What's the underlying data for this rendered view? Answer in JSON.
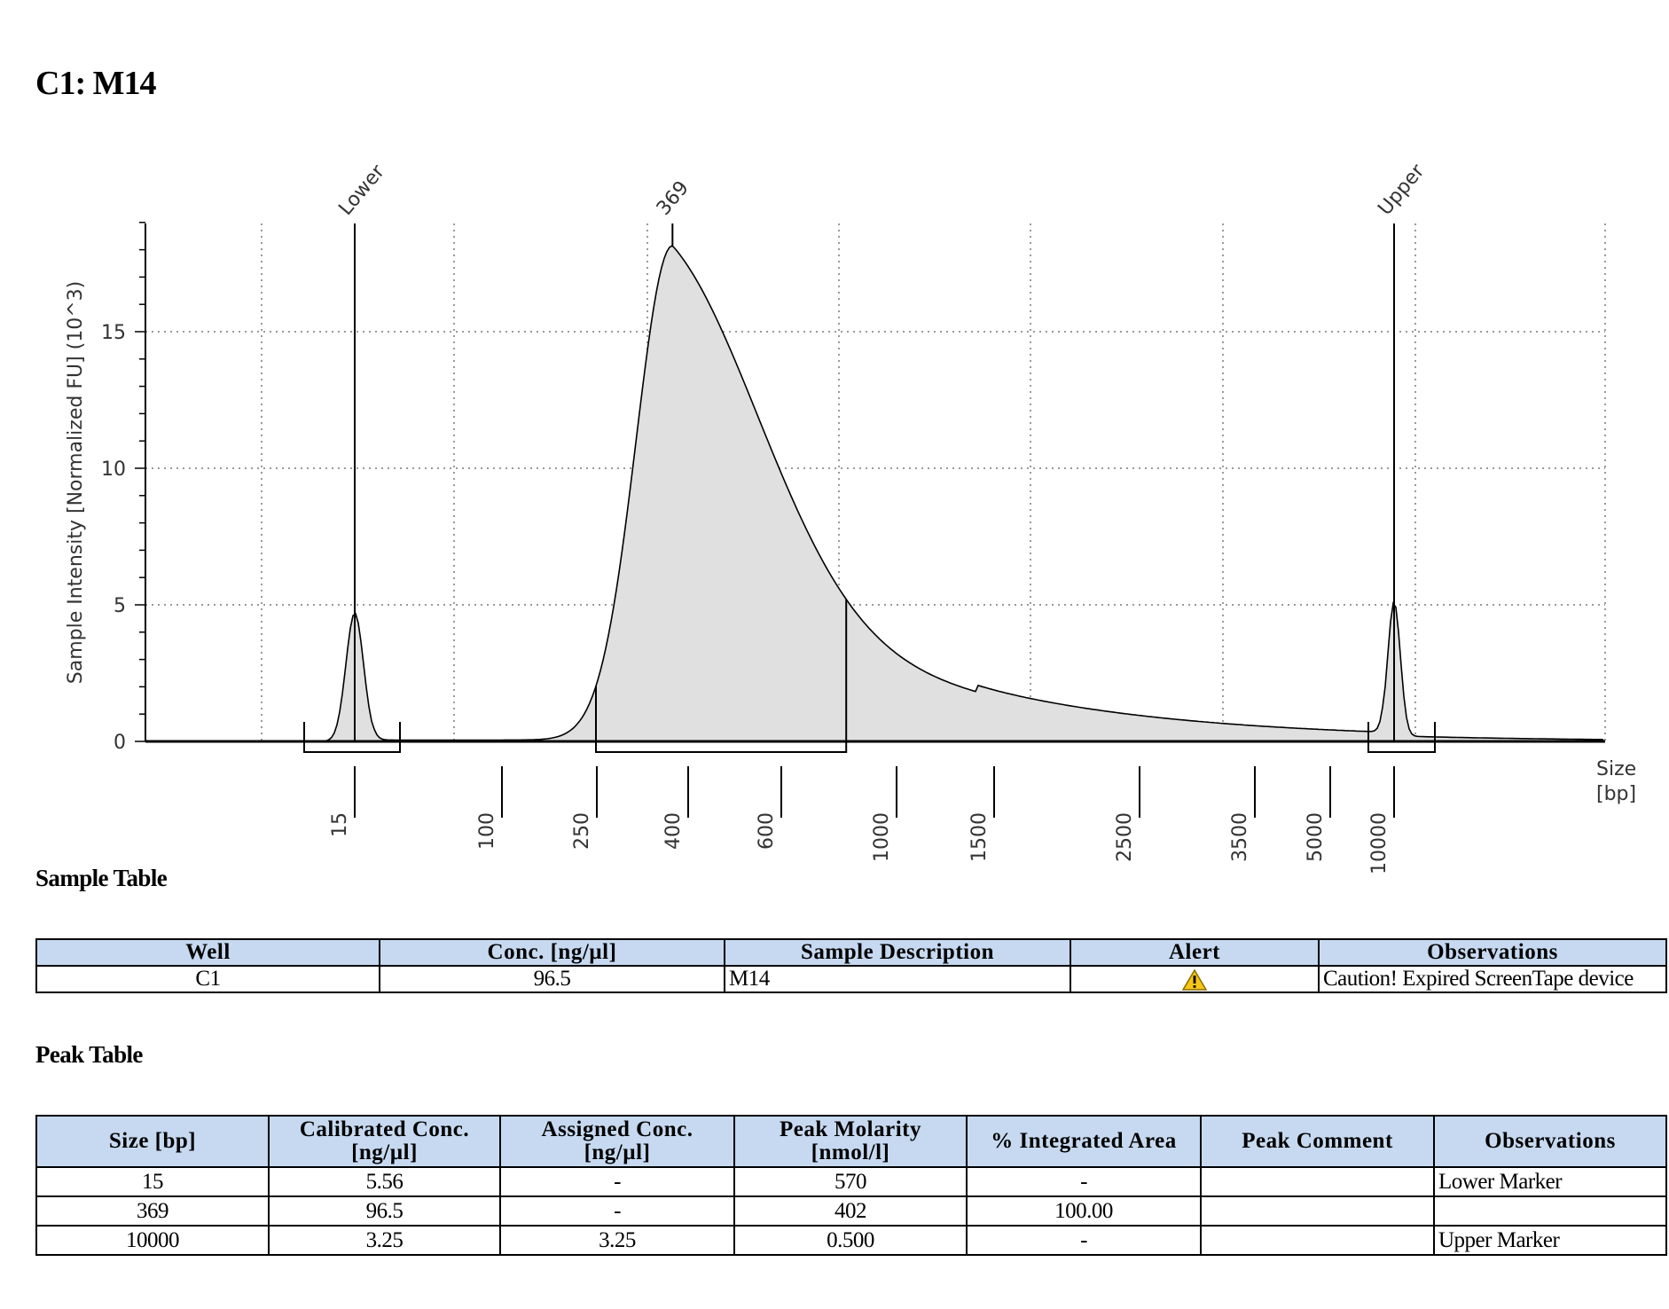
{
  "page_title": "C1: M14",
  "chart_data": {
    "type": "area",
    "ylabel": "Sample Intensity [Normalized FU] (10^3)",
    "xlabel": "Size\n[bp]",
    "y_ticks": [
      0,
      5,
      10,
      15
    ],
    "ylim": [
      0,
      19
    ],
    "x_ticks": [
      "15",
      "100",
      "250",
      "400",
      "600",
      "1000",
      "1500",
      "2500",
      "3500",
      "5000",
      "10000"
    ],
    "grid": "dotted",
    "peaks": [
      {
        "label": "Lower",
        "size": "15",
        "height": 4.7
      },
      {
        "label": "369",
        "size": "369",
        "height": 18.1
      },
      {
        "label": "Upper",
        "size": "10000",
        "height": 4.9
      }
    ],
    "region_start_bp": 250,
    "region_end_bp": 800,
    "fill_color": "#e0e0e0",
    "line_color": "#000000"
  },
  "sample_table": {
    "title": "Sample Table",
    "headers": [
      "Well",
      "Conc. [ng/µl]",
      "Sample Description",
      "Alert",
      "Observations"
    ],
    "rows": [
      {
        "well": "C1",
        "conc": "96.5",
        "description": "M14",
        "alert_icon": "warning-icon",
        "observations": "Caution! Expired ScreenTape device"
      }
    ]
  },
  "peak_table": {
    "title": "Peak Table",
    "headers": [
      "Size [bp]",
      "Calibrated Conc.\n[ng/µl]",
      "Assigned Conc.\n[ng/µl]",
      "Peak Molarity\n[nmol/l]",
      "% Integrated Area",
      "Peak Comment",
      "Observations"
    ],
    "rows": [
      [
        "15",
        "5.56",
        "-",
        "570",
        "-",
        "",
        "Lower Marker"
      ],
      [
        "369",
        "96.5",
        "-",
        "402",
        "100.00",
        "",
        ""
      ],
      [
        "10000",
        "3.25",
        "3.25",
        "0.500",
        "-",
        "",
        "Upper Marker"
      ]
    ]
  },
  "colors": {
    "header_bg": "#c6d9f0",
    "warning": "#f5c518"
  }
}
